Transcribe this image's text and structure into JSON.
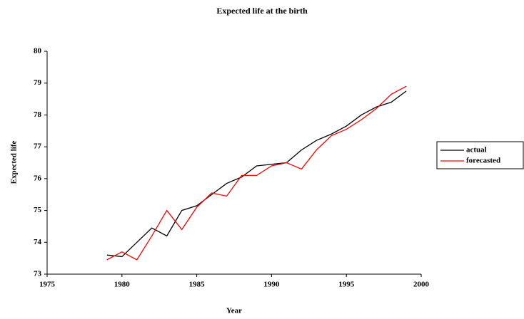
{
  "chart_data": {
    "type": "line",
    "title": "Expected life at the birth",
    "x_label": "Year",
    "y_label": "Expected life",
    "x": [
      1979,
      1980,
      1981,
      1982,
      1983,
      1984,
      1985,
      1986,
      1987,
      1988,
      1989,
      1990,
      1991,
      1992,
      1993,
      1994,
      1995,
      1996,
      1997,
      1998,
      1999
    ],
    "series": [
      {
        "name": "actual",
        "color": "#000000",
        "values": [
          73.6,
          73.55,
          74.0,
          74.45,
          74.2,
          75.0,
          75.15,
          75.5,
          75.85,
          76.05,
          76.4,
          76.45,
          76.5,
          76.9,
          77.2,
          77.4,
          77.65,
          78.0,
          78.25,
          78.4,
          78.75
        ]
      },
      {
        "name": "forecasted",
        "color": "#ff0000",
        "values": [
          73.45,
          73.7,
          73.45,
          74.2,
          75.0,
          74.4,
          75.1,
          75.55,
          75.45,
          76.1,
          76.1,
          76.4,
          76.5,
          76.3,
          76.9,
          77.35,
          77.55,
          77.85,
          78.2,
          78.65,
          78.9
        ]
      }
    ],
    "xlim": [
      1975,
      2000
    ],
    "xticks": [
      1975,
      1980,
      1985,
      1990,
      1995,
      2000
    ],
    "ylim": [
      73,
      80
    ],
    "yticks": [
      73,
      74,
      75,
      76,
      77,
      78,
      79,
      80
    ],
    "grid": false,
    "legend": "right"
  }
}
